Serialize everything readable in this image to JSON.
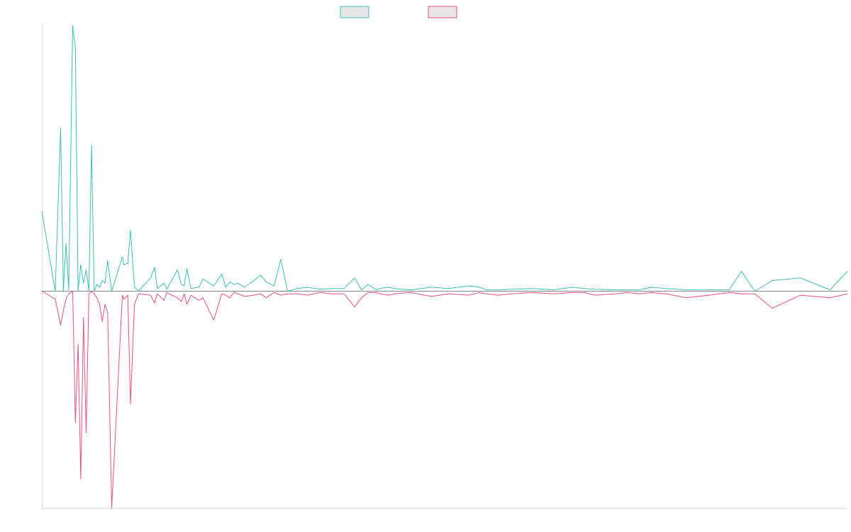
{
  "chart_data": {
    "type": "line",
    "title": "",
    "xlabel": "",
    "ylabel": "",
    "grid": false,
    "legend_position": "top-center",
    "x": [
      0,
      10,
      14,
      16,
      18,
      20,
      23,
      25,
      27,
      29,
      31,
      33,
      35,
      37,
      39,
      41,
      43,
      45,
      47,
      49,
      52,
      60,
      61,
      64,
      66,
      69,
      72,
      81,
      84,
      86,
      91,
      93,
      101,
      104,
      106,
      108,
      111,
      117,
      120,
      128,
      134,
      137,
      140,
      143,
      146,
      151,
      158,
      163,
      167,
      173,
      178,
      183,
      190,
      198,
      207,
      216,
      225,
      233,
      238,
      243,
      249,
      252,
      258,
      263,
      268,
      275,
      290,
      303,
      318,
      326,
      331,
      340,
      350,
      365,
      381,
      395,
      404,
      412,
      427,
      436,
      445,
      454,
      465,
      480,
      497,
      512,
      521,
      531,
      544,
      565,
      587,
      600
    ],
    "series": [
      {
        "name": "",
        "color": "#3dbfb0",
        "values": [
          120,
          0,
          246,
          0,
          72,
          2,
          400,
          366,
          0,
          40,
          12,
          32,
          0,
          220,
          0,
          10,
          6,
          16,
          12,
          46,
          0,
          52,
          40,
          42,
          92,
          6,
          0,
          20,
          36,
          4,
          12,
          3,
          32,
          10,
          8,
          34,
          4,
          6,
          18,
          8,
          26,
          6,
          14,
          10,
          12,
          6,
          16,
          24,
          14,
          8,
          48,
          0,
          4,
          6,
          3,
          4,
          4,
          20,
          2,
          10,
          2,
          4,
          6,
          4,
          3,
          2,
          6,
          4,
          8,
          6,
          2,
          2,
          3,
          4,
          2,
          6,
          4,
          3,
          2,
          2,
          2,
          6,
          4,
          2,
          2,
          2,
          30,
          0,
          16,
          20,
          2,
          30
        ]
      },
      {
        "name": "",
        "color": "#e8507e",
        "values": [
          0,
          -12,
          -52,
          -30,
          -12,
          -4,
          0,
          -200,
          -80,
          -286,
          -40,
          -216,
          -4,
          0,
          -4,
          -10,
          -20,
          -46,
          -20,
          -32,
          -330,
          -6,
          -12,
          -6,
          -172,
          -20,
          -4,
          -6,
          -18,
          -4,
          -14,
          -2,
          -10,
          -16,
          -4,
          -20,
          -6,
          -14,
          -10,
          -44,
          -4,
          -6,
          -10,
          -2,
          -4,
          -8,
          -6,
          -4,
          -10,
          -2,
          -6,
          -4,
          -4,
          -6,
          -2,
          -4,
          -4,
          -24,
          -10,
          -2,
          -2,
          -4,
          -6,
          -4,
          -3,
          -2,
          -8,
          -4,
          -6,
          -2,
          -4,
          -6,
          -4,
          -2,
          -4,
          -2,
          -2,
          -6,
          -4,
          -2,
          -4,
          -2,
          -4,
          -10,
          -6,
          -2,
          -4,
          -4,
          -26,
          -6,
          -10,
          -4
        ]
      }
    ]
  }
}
